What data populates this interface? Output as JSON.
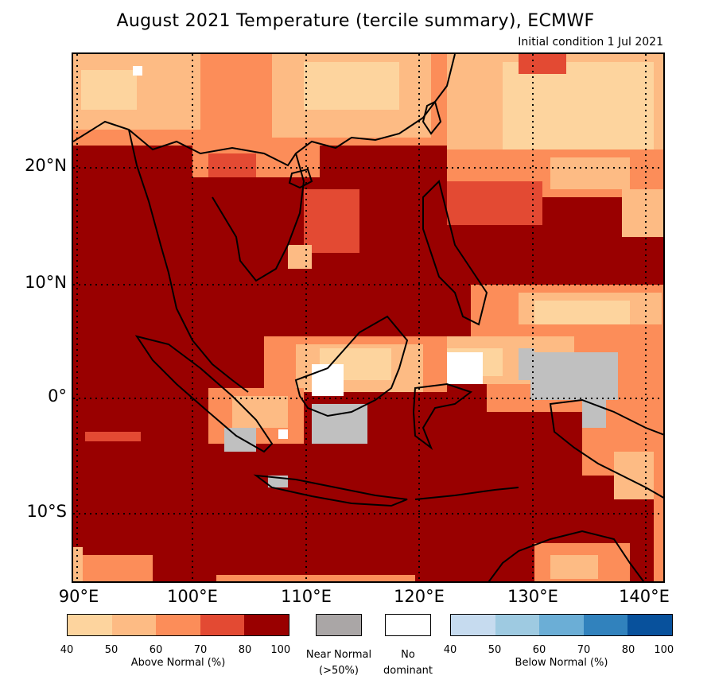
{
  "header": {
    "title": "August 2021 Temperature (tercile summary), ECMWF",
    "subtitle": "Initial condition 1 Jul 2021"
  },
  "map": {
    "lat_labels": [
      "20°N",
      "10°N",
      "0°",
      "10°S"
    ],
    "lon_labels": [
      "90°E",
      "100°E",
      "110°E",
      "120°E",
      "130°E",
      "140°E"
    ],
    "dominant_category": "Above Normal 80-100%",
    "colors": {
      "above_40_50": "#fdd49e",
      "above_50_60": "#fdbb84",
      "above_60_70": "#fc8d59",
      "above_70_80": "#e34a33",
      "above_80_100": "#990000",
      "near_normal": "#c0c0c0",
      "no_dominant": "#ffffff"
    }
  },
  "legend": {
    "above": {
      "caption": "Above Normal (%)",
      "ticks": [
        "40",
        "50",
        "60",
        "70",
        "80",
        "100"
      ],
      "colors": [
        "#fdd49e",
        "#fdbb84",
        "#fc8d59",
        "#e34a33",
        "#990000"
      ]
    },
    "near_normal": {
      "caption_line1": "Near Normal",
      "caption_line2": "(>50%)",
      "color": "#aaa6a6"
    },
    "no_dominant": {
      "caption_line1": "No",
      "caption_line2": "dominant",
      "color": "#ffffff"
    },
    "below": {
      "caption": "Below Normal (%)",
      "ticks": [
        "40",
        "50",
        "60",
        "70",
        "80",
        "100"
      ],
      "colors": [
        "#c6dbef",
        "#9ecae1",
        "#6baed6",
        "#3182bd",
        "#08519c"
      ]
    }
  }
}
